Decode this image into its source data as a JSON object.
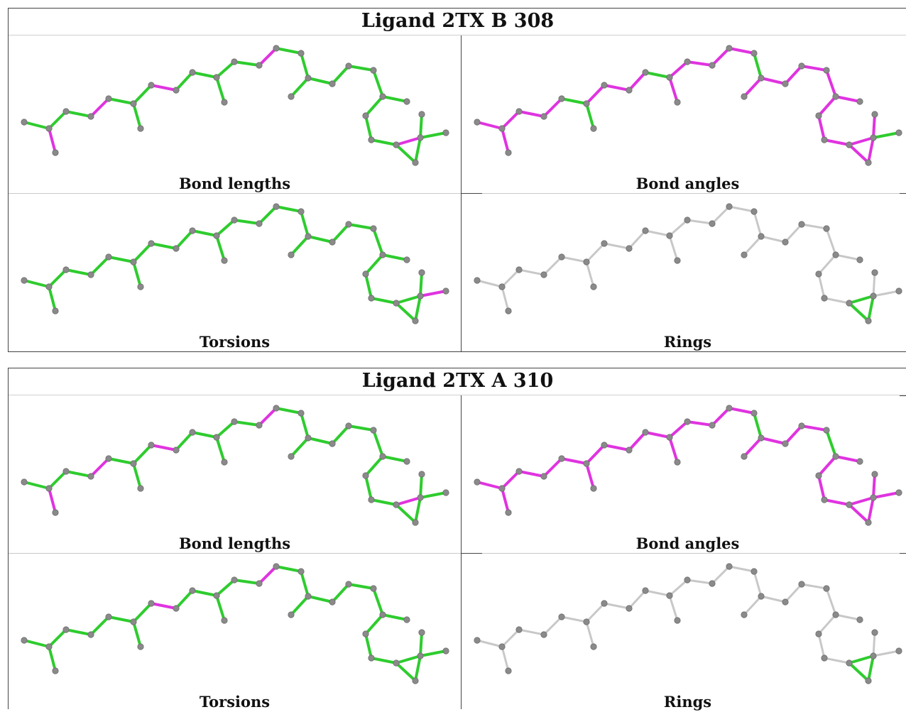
{
  "colors": {
    "good": "#2ecc2e",
    "outlier": "#e033e0",
    "neutral": "#c8c8c8",
    "atom": "#8a8a8a"
  },
  "ligands": [
    {
      "title": "Ligand 2TX B 308",
      "panels": [
        {
          "caption": "Bond lengths",
          "outliers": [
            [
              1,
              2
            ],
            [
              4,
              5
            ],
            [
              8,
              9
            ],
            [
              14,
              15
            ],
            [
              26,
              27
            ]
          ]
        },
        {
          "caption": "Bond angles",
          "good": [
            [
              2,
              3
            ],
            [
              5,
              6
            ],
            [
              6,
              7
            ],
            [
              8,
              10
            ],
            [
              10,
              11
            ],
            [
              16,
              17
            ],
            [
              27,
              28
            ],
            [
              28,
              29
            ],
            [
              30,
              31
            ],
            [
              32,
              34
            ]
          ]
        },
        {
          "caption": "Torsions",
          "outliers": [
            [
              27,
              28
            ],
            [
              28,
              29
            ],
            [
              29,
              30
            ]
          ]
        },
        {
          "caption": "Rings",
          "ring": true
        }
      ]
    },
    {
      "title": "Ligand 2TX A 310",
      "panels": [
        {
          "caption": "Bond lengths",
          "outliers": [
            [
              1,
              2
            ],
            [
              4,
              5
            ],
            [
              8,
              9
            ],
            [
              14,
              15
            ],
            [
              26,
              27
            ]
          ]
        },
        {
          "caption": "Bond angles",
          "good": [
            [
              2,
              3
            ],
            [
              16,
              17
            ],
            [
              21,
              22
            ],
            [
              28,
              29
            ],
            [
              31,
              33
            ]
          ]
        },
        {
          "caption": "Torsions",
          "outliers": [
            [
              8,
              9
            ],
            [
              14,
              15
            ],
            [
              28,
              29
            ],
            [
              29,
              30
            ]
          ]
        },
        {
          "caption": "Rings",
          "ring": true
        }
      ]
    }
  ]
}
